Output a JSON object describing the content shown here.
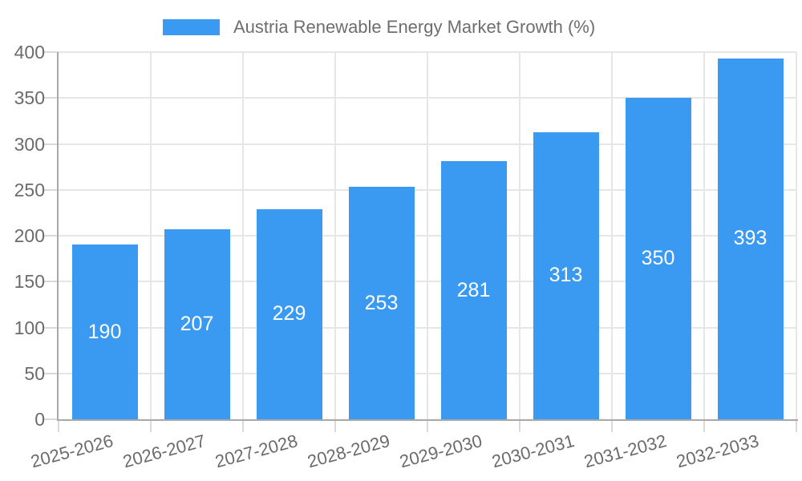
{
  "chart_data": {
    "type": "bar",
    "title": "Austria Renewable Energy Market Growth (%)",
    "categories": [
      "2025-2026",
      "2026-2027",
      "2027-2028",
      "2028-2029",
      "2029-2030",
      "2030-2031",
      "2031-2032",
      "2032-2033"
    ],
    "values": [
      190,
      207,
      229,
      253,
      281,
      313,
      350,
      393
    ],
    "xlabel": "",
    "ylabel": "",
    "ylim": [
      0,
      400
    ],
    "yticks": [
      0,
      50,
      100,
      150,
      200,
      250,
      300,
      350,
      400
    ],
    "grid": true,
    "legend_position": "top",
    "value_labels_position": "center-inside",
    "colors": {
      "bar": "#3A99F0",
      "value_label": "#FFFFFF",
      "axis_line": "#A8A8A8",
      "grid_line": "#E6E6E6",
      "tick_mark": "#D9D9D9",
      "tick_text": "#6B6B6B",
      "legend_text": "#6E6E6E",
      "background": "#FFFFFF"
    }
  }
}
